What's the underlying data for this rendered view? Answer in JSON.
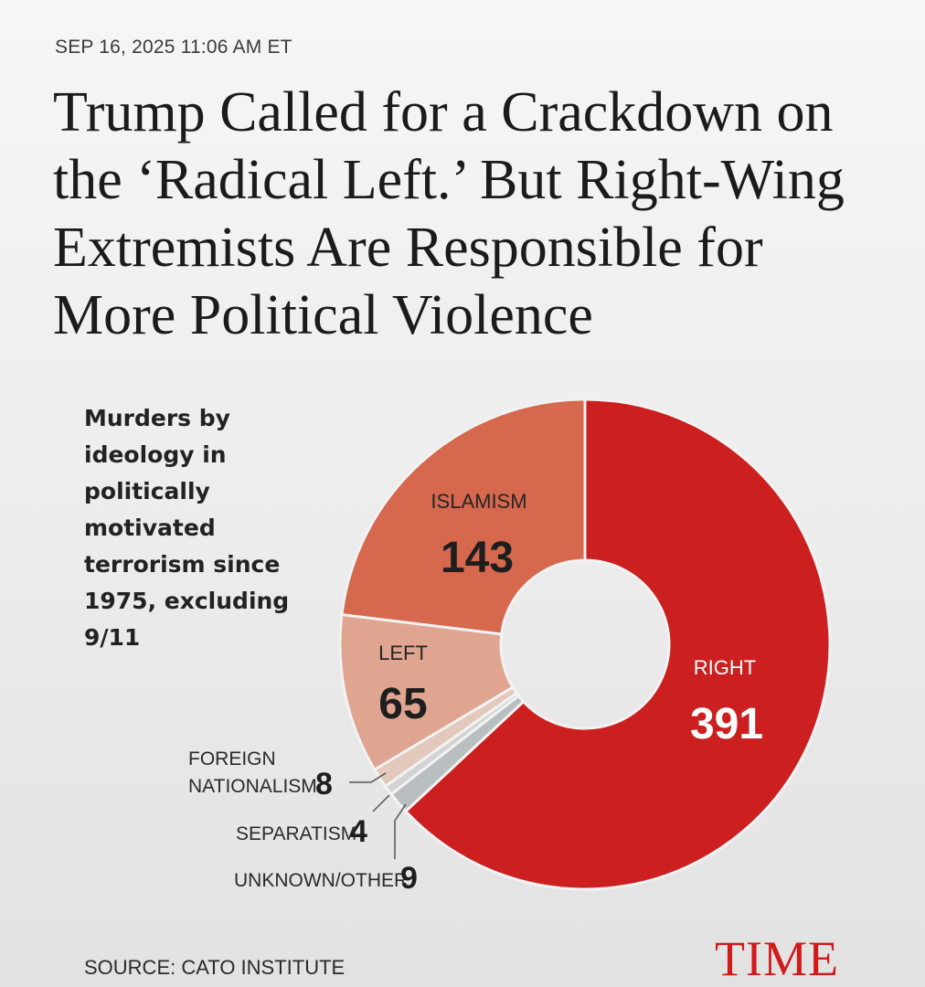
{
  "article": {
    "dateline": "SEP 16, 2025 11:06 AM ET",
    "headline": "Trump Called for a Crackdown on the ‘Radical Left.’ But Right-Wing Extremists Are Responsible for More Political Violence",
    "source": "SOURCE: CATO INSTITUTE",
    "publisher": "TIME"
  },
  "chart_data": {
    "type": "pie",
    "style": "donut",
    "title": "Murders by ideology in politically motivated terrorism since 1975, excluding 9/11",
    "slices": [
      {
        "label": "RIGHT",
        "value": 391,
        "color": "#cc1f1f"
      },
      {
        "label": "UNKNOWN/OTHER",
        "value": 9,
        "color": "#b9bec0"
      },
      {
        "label": "SEPARATISM",
        "value": 4,
        "color": "#d3d3d3"
      },
      {
        "label": "FOREIGN NATIONALISM",
        "value": 8,
        "color": "#e3c8bc"
      },
      {
        "label": "LEFT",
        "value": 65,
        "color": "#dfa590"
      },
      {
        "label": "ISLAMISM",
        "value": 143,
        "color": "#d5684d"
      }
    ]
  }
}
